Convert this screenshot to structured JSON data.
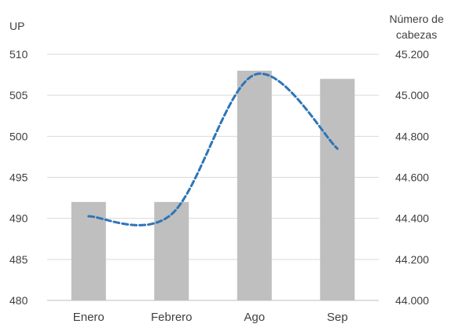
{
  "chart_data": {
    "type": "bar",
    "categories": [
      "Enero",
      "Febrero",
      "Ago",
      "Sep"
    ],
    "series": [
      {
        "name": "UP",
        "type": "bar",
        "axis": "left",
        "values": [
          492,
          492,
          508,
          507
        ],
        "color": "#bfbfbf"
      },
      {
        "name": "Número de cabezas",
        "type": "line",
        "axis": "right",
        "style": "dashed smooth",
        "values": [
          44410,
          44420,
          45100,
          44740
        ],
        "color": "#2e75b6"
      }
    ],
    "left_axis": {
      "label": "UP",
      "ylim": [
        480,
        510
      ],
      "ticks": [
        480,
        485,
        490,
        495,
        500,
        505,
        510
      ],
      "tick_labels": [
        "480",
        "485",
        "490",
        "495",
        "500",
        "505",
        "510"
      ]
    },
    "right_axis": {
      "label_lines": [
        "Número de",
        "cabezas"
      ],
      "ylim": [
        44000,
        45200
      ],
      "ticks": [
        44000,
        44200,
        44400,
        44600,
        44800,
        45000,
        45200
      ],
      "tick_labels": [
        "44.000",
        "44.200",
        "44.400",
        "44.600",
        "44.800",
        "45.000",
        "45.200"
      ]
    },
    "grid": true,
    "grid_color": "#d9d9d9"
  }
}
